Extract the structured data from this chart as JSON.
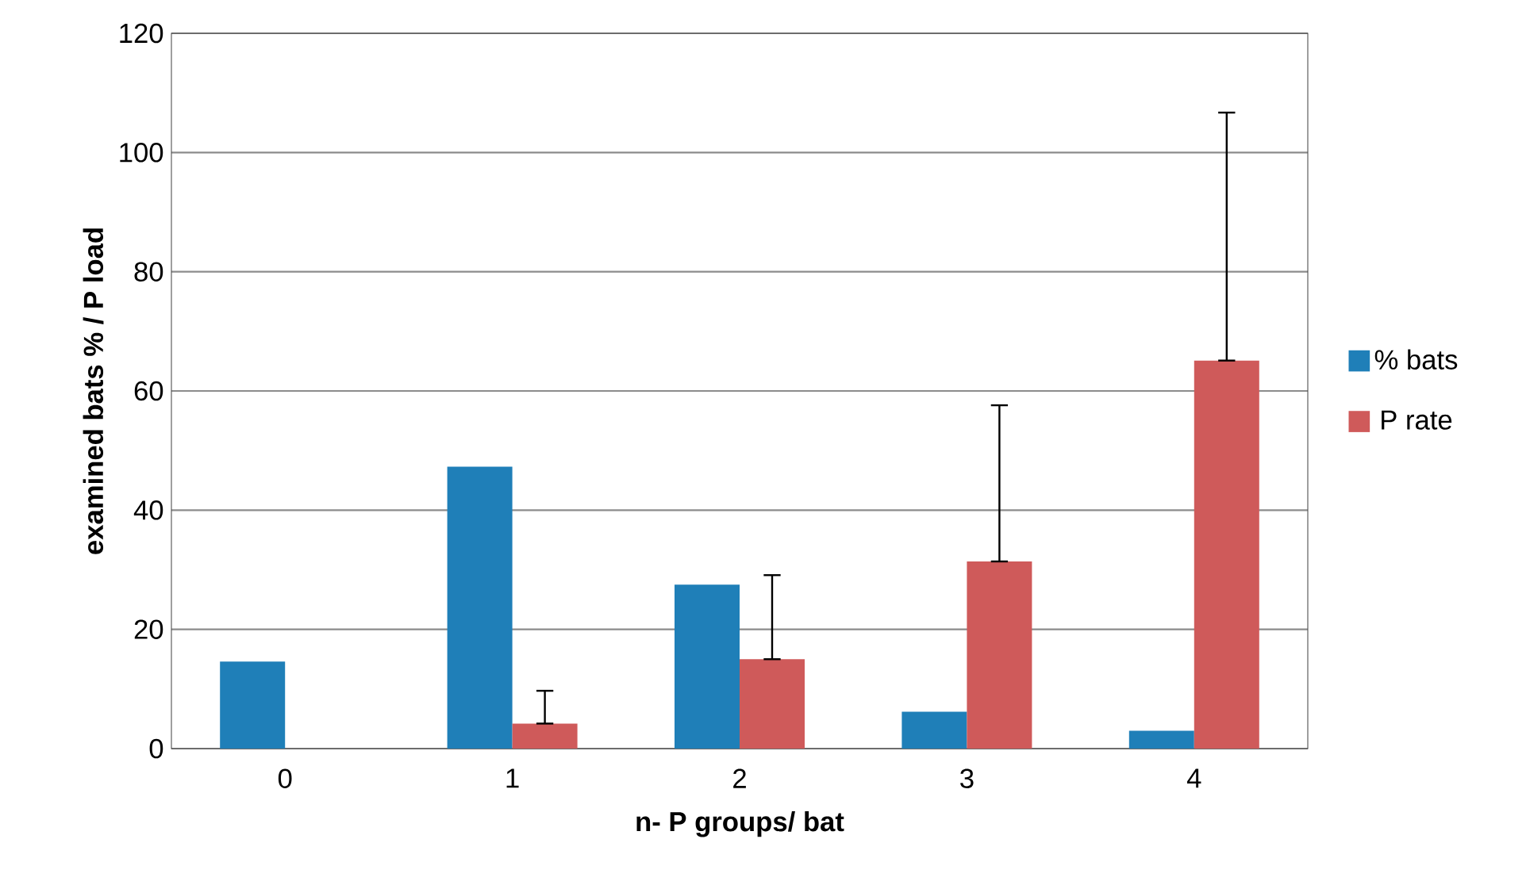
{
  "chart_data": {
    "type": "bar",
    "xlabel": "n- P groups/ bat",
    "ylabel": "examined bats % / P load",
    "categories": [
      "0",
      "1",
      "2",
      "3",
      "4"
    ],
    "series": [
      {
        "name": "% bats",
        "color": "#1f7fb8",
        "values": [
          14.6,
          47.3,
          27.5,
          6.2,
          3.0
        ]
      },
      {
        "name": "P rate",
        "color": "#cf5a5a",
        "values": [
          null,
          4.2,
          15.0,
          31.4,
          65.1
        ],
        "errors": [
          null,
          [
            4.2,
            9.7
          ],
          [
            15.0,
            29.1
          ],
          [
            31.4,
            57.6
          ],
          [
            65.1,
            106.7
          ]
        ]
      }
    ],
    "ylim": [
      0,
      120
    ],
    "yticks": [
      0,
      20,
      40,
      60,
      80,
      100,
      120
    ],
    "grid": "y",
    "legend": "right"
  }
}
